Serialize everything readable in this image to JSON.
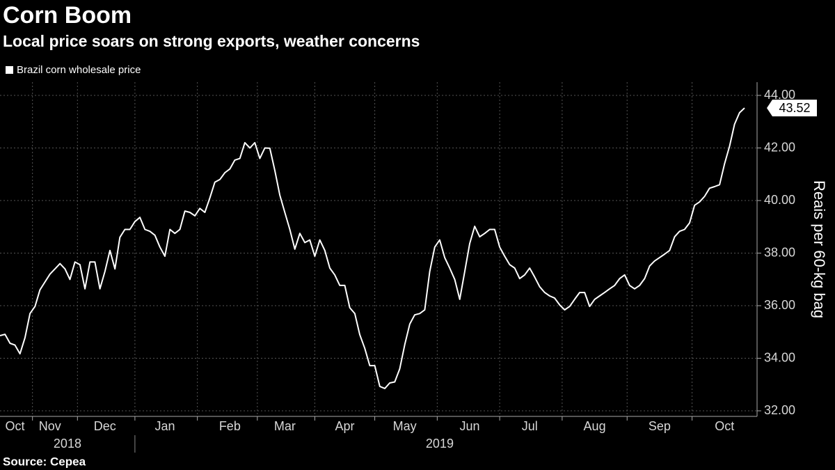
{
  "chart_data": {
    "type": "line",
    "title": "Corn Boom",
    "subtitle": "Local price soars on strong exports, weather concerns",
    "y_axis_label": "Reais per 60-kg bag",
    "source": "Source: Cepea",
    "year_labels": [
      "2018",
      "2019"
    ],
    "categories": [
      null,
      null,
      null,
      "Oct",
      null,
      null,
      null,
      null,
      null,
      null,
      "Nov",
      null,
      null,
      null,
      null,
      null,
      null,
      null,
      null,
      null,
      null,
      "Dec",
      null,
      null,
      null,
      null,
      null,
      null,
      null,
      null,
      null,
      null,
      null,
      "Jan",
      null,
      null,
      null,
      null,
      null,
      null,
      null,
      null,
      null,
      null,
      null,
      null,
      "Feb",
      null,
      null,
      null,
      null,
      null,
      null,
      null,
      null,
      null,
      null,
      "Mar",
      null,
      null,
      null,
      null,
      null,
      null,
      null,
      null,
      null,
      null,
      null,
      "Apr",
      null,
      null,
      null,
      null,
      null,
      null,
      null,
      null,
      null,
      null,
      null,
      "May",
      null,
      null,
      null,
      null,
      null,
      null,
      null,
      null,
      null,
      null,
      null,
      null,
      "Jun",
      null,
      null,
      null,
      null,
      null,
      null,
      null,
      null,
      null,
      null,
      null,
      "Jul",
      null,
      null,
      null,
      null,
      null,
      null,
      null,
      null,
      null,
      null,
      null,
      null,
      "Aug",
      null,
      null,
      null,
      null,
      null,
      null,
      null,
      null,
      null,
      null,
      null,
      null,
      "Sep",
      null,
      null,
      null,
      null,
      null,
      null,
      null,
      null,
      null,
      null,
      null,
      null,
      "Oct",
      null,
      null,
      null,
      null
    ],
    "series": [
      {
        "name": "Brazil corn wholesale price",
        "color": "#ffffff",
        "values": [
          34.86,
          34.91,
          34.57,
          34.5,
          34.17,
          34.78,
          35.7,
          35.97,
          36.6,
          36.9,
          37.2,
          37.4,
          37.6,
          37.4,
          37.0,
          37.66,
          37.56,
          36.64,
          37.66,
          37.66,
          36.64,
          37.3,
          38.1,
          37.4,
          38.6,
          38.9,
          38.9,
          39.2,
          39.36,
          38.9,
          38.83,
          38.68,
          38.23,
          37.88,
          38.9,
          38.75,
          38.9,
          39.6,
          39.55,
          39.42,
          39.7,
          39.55,
          40.1,
          40.7,
          40.8,
          41.06,
          41.2,
          41.54,
          41.6,
          42.2,
          42.0,
          42.2,
          41.6,
          42.0,
          41.99,
          41.14,
          40.21,
          39.55,
          38.9,
          38.15,
          38.75,
          38.4,
          38.5,
          37.88,
          38.5,
          38.1,
          37.43,
          37.17,
          36.77,
          36.77,
          35.92,
          35.7,
          34.9,
          34.38,
          33.72,
          33.72,
          32.93,
          32.85,
          33.06,
          33.1,
          33.6,
          34.52,
          35.3,
          35.65,
          35.7,
          35.84,
          37.3,
          38.23,
          38.5,
          37.83,
          37.43,
          37.0,
          36.24,
          37.3,
          38.36,
          39.02,
          38.62,
          38.75,
          38.9,
          38.9,
          38.23,
          37.88,
          37.56,
          37.43,
          37.03,
          37.17,
          37.43,
          37.09,
          36.72,
          36.5,
          36.37,
          36.29,
          36.03,
          35.84,
          35.97,
          36.24,
          36.5,
          36.5,
          35.97,
          36.24,
          36.37,
          36.5,
          36.64,
          36.77,
          37.03,
          37.17,
          36.77,
          36.64,
          36.77,
          37.03,
          37.51,
          37.7,
          37.83,
          37.96,
          38.1,
          38.62,
          38.83,
          38.9,
          39.15,
          39.82,
          39.95,
          40.16,
          40.47,
          40.53,
          40.6,
          41.4,
          42.07,
          42.9,
          43.34,
          43.52
        ]
      }
    ],
    "ylim": [
      32,
      44
    ],
    "yticks": [
      {
        "value": 32,
        "label": "32.00"
      },
      {
        "value": 34,
        "label": "34.00"
      },
      {
        "value": 36,
        "label": "36.00"
      },
      {
        "value": 38,
        "label": "38.00"
      },
      {
        "value": 40,
        "label": "40.00"
      },
      {
        "value": 42,
        "label": "42.00"
      },
      {
        "value": 44,
        "label": "44.00"
      }
    ],
    "y_axis_side": "right",
    "grid": true
  }
}
